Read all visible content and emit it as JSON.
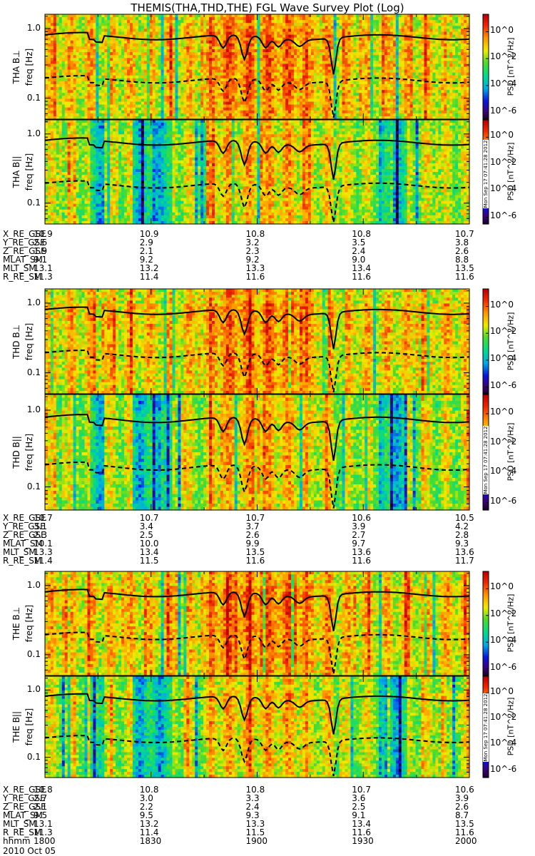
{
  "title": "THEMIS(THA,THD,THE) FGL Wave Survey Plot (Log)",
  "chart_data": {
    "type": "heatmap",
    "title": "THEMIS(THA,THD,THE) FGL Wave Survey Plot (Log)",
    "x_range": [
      "1800",
      "2000"
    ],
    "y_axis": {
      "scale": "log",
      "range": [
        0.05,
        1.6
      ],
      "ticks": [
        "1.0",
        "0.1"
      ],
      "label": "freq [Hz]"
    },
    "colorbar": {
      "scale": "log",
      "range": [
        1e-06,
        10
      ],
      "ticks": [
        "10^0",
        "10^-2",
        "10^-4",
        "10^-6"
      ],
      "label": "PSD [nT^2/Hz]"
    },
    "stamp": "Mon Sep 17 07:41:28 2012",
    "panels": [
      {
        "id": "THA B⊥",
        "ylabel_probe": "THA B⊥"
      },
      {
        "id": "THA B||",
        "ylabel_probe": "THA B||"
      },
      {
        "id": "THD B⊥",
        "ylabel_probe": "THD B⊥"
      },
      {
        "id": "THD B||",
        "ylabel_probe": "THD B||"
      },
      {
        "id": "THE B⊥",
        "ylabel_probe": "THE B⊥"
      },
      {
        "id": "THE B||",
        "ylabel_probe": "THE B||"
      }
    ],
    "orbit_blocks": [
      {
        "probe": "THA",
        "rows": [
          {
            "label": "X_RE_GSE",
            "values": [
              "10.9",
              "10.9",
              "10.8",
              "10.8",
              "10.7"
            ]
          },
          {
            "label": "Y_RE_GSE",
            "values": [
              "2.6",
              "2.9",
              "3.2",
              "3.5",
              "3.8"
            ]
          },
          {
            "label": "Z_RE_GSE",
            "values": [
              "1.9",
              "2.1",
              "2.3",
              "2.4",
              "2.6"
            ]
          },
          {
            "label": "MLAT_SM",
            "values": [
              "9.1",
              "9.2",
              "9.2",
              "9.0",
              "8.8"
            ]
          },
          {
            "label": "MLT_SM",
            "values": [
              "13.1",
              "13.2",
              "13.3",
              "13.4",
              "13.5"
            ]
          },
          {
            "label": "R_RE_SM",
            "values": [
              "11.3",
              "11.4",
              "11.6",
              "11.6",
              "11.6"
            ]
          }
        ]
      },
      {
        "probe": "THD",
        "rows": [
          {
            "label": "X_RE_GSE",
            "values": [
              "10.7",
              "10.7",
              "10.7",
              "10.6",
              "10.5"
            ]
          },
          {
            "label": "Y_RE_GSE",
            "values": [
              "3.1",
              "3.4",
              "3.7",
              "3.9",
              "4.2"
            ]
          },
          {
            "label": "Z_RE_GSE",
            "values": [
              "2.3",
              "2.5",
              "2.6",
              "2.7",
              "2.8"
            ]
          },
          {
            "label": "MLAT_SM",
            "values": [
              "10.1",
              "10.0",
              "9.9",
              "9.7",
              "9.3"
            ]
          },
          {
            "label": "MLT_SM",
            "values": [
              "13.3",
              "13.4",
              "13.5",
              "13.6",
              "13.6"
            ]
          },
          {
            "label": "R_RE_SM",
            "values": [
              "11.4",
              "11.5",
              "11.6",
              "11.6",
              "11.7"
            ]
          }
        ]
      },
      {
        "probe": "THE",
        "rows": [
          {
            "label": "X_RE_GSE",
            "values": [
              "10.8",
              "10.8",
              "10.8",
              "10.7",
              "10.6"
            ]
          },
          {
            "label": "Y_RE_GSE",
            "values": [
              "2.7",
              "3.0",
              "3.3",
              "3.6",
              "3.9"
            ]
          },
          {
            "label": "Z_RE_GSE",
            "values": [
              "2.1",
              "2.2",
              "2.4",
              "2.5",
              "2.6"
            ]
          },
          {
            "label": "MLAT_SM",
            "values": [
              "9.5",
              "9.5",
              "9.3",
              "9.1",
              "8.7"
            ]
          },
          {
            "label": "MLT_SM",
            "values": [
              "13.1",
              "13.2",
              "13.3",
              "13.4",
              "13.5"
            ]
          },
          {
            "label": "R_RE_SM",
            "values": [
              "11.3",
              "11.4",
              "11.5",
              "11.6",
              "11.6"
            ]
          },
          {
            "label": "hhmm",
            "values": [
              "1800",
              "1830",
              "1900",
              "1930",
              "2000"
            ]
          }
        ]
      }
    ],
    "date": "2010 Oct 05",
    "lines": {
      "solid": "upper characteristic frequency curve",
      "dashed": "lower characteristic frequency curve"
    }
  }
}
